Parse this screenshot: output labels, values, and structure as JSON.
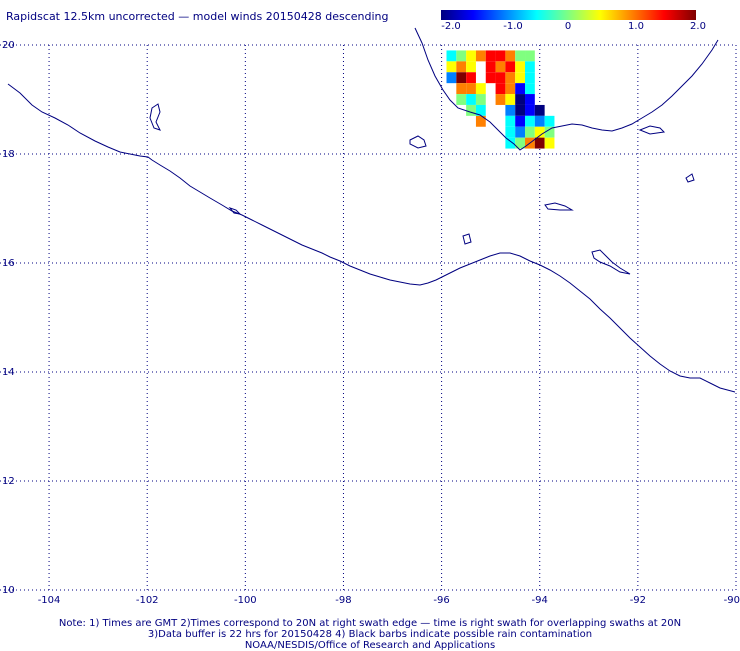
{
  "title": "Rapidscat 12.5km uncorrected — model winds 20150428 descending",
  "colorbar": {
    "labels": [
      "-2.0",
      "-1.0",
      "0",
      "1.0",
      "2.0"
    ],
    "colors": [
      "#00007f",
      "#0000ff",
      "#0080ff",
      "#00ffff",
      "#80ff80",
      "#ffff00",
      "#ff8000",
      "#ff0000",
      "#7f0000"
    ]
  },
  "map": {
    "lon_range": [
      -105,
      -90
    ],
    "lat_range": [
      10,
      20
    ],
    "lon_ticks": [
      -104,
      -102,
      -100,
      -98,
      -96,
      -94,
      -92,
      -90
    ],
    "lon_labels": [
      "-104",
      "-102",
      "-100",
      "-98",
      "-96",
      "-94",
      "-92",
      "-90"
    ],
    "lat_ticks": [
      20,
      18,
      16,
      14,
      12,
      10
    ],
    "lat_labels": [
      "20",
      "18",
      "16",
      "14",
      "12",
      "10"
    ],
    "coast_color": "#000080",
    "grid": "dotted"
  },
  "swath_cells": [
    [
      "-95.8",
      "19.8",
      "#00ffff"
    ],
    [
      "-95.6",
      "19.8",
      "#80ff80"
    ],
    [
      "-95.4",
      "19.8",
      "#ffff00"
    ],
    [
      "-95.2",
      "19.8",
      "#ff8000"
    ],
    [
      "-95.0",
      "19.8",
      "#ff0000"
    ],
    [
      "-94.8",
      "19.8",
      "#ff0000"
    ],
    [
      "-94.6",
      "19.8",
      "#ff8000"
    ],
    [
      "-94.4",
      "19.8",
      "#80ff80"
    ],
    [
      "-94.2",
      "19.8",
      "#80ff80"
    ],
    [
      "-95.8",
      "19.6",
      "#ffff00"
    ],
    [
      "-95.6",
      "19.6",
      "#ff8000"
    ],
    [
      "-95.4",
      "19.6",
      "#ffff00"
    ],
    [
      "-95.0",
      "19.6",
      "#ff0000"
    ],
    [
      "-94.8",
      "19.6",
      "#ff8000"
    ],
    [
      "-94.6",
      "19.6",
      "#ff0000"
    ],
    [
      "-94.4",
      "19.6",
      "#ffff00"
    ],
    [
      "-94.2",
      "19.6",
      "#00ffff"
    ],
    [
      "-95.8",
      "19.4",
      "#0080ff"
    ],
    [
      "-95.6",
      "19.4",
      "#7f0000"
    ],
    [
      "-95.4",
      "19.4",
      "#ff0000"
    ],
    [
      "-95.0",
      "19.4",
      "#ff0000"
    ],
    [
      "-94.8",
      "19.4",
      "#ff0000"
    ],
    [
      "-94.6",
      "19.4",
      "#ff8000"
    ],
    [
      "-94.4",
      "19.4",
      "#ffff00"
    ],
    [
      "-94.2",
      "19.4",
      "#00ffff"
    ],
    [
      "-95.6",
      "19.2",
      "#ff8000"
    ],
    [
      "-95.4",
      "19.2",
      "#ff8000"
    ],
    [
      "-95.2",
      "19.2",
      "#ffff00"
    ],
    [
      "-94.8",
      "19.2",
      "#ff0000"
    ],
    [
      "-94.6",
      "19.2",
      "#ff8000"
    ],
    [
      "-94.4",
      "19.2",
      "#0000ff"
    ],
    [
      "-94.2",
      "19.2",
      "#00ffff"
    ],
    [
      "-95.6",
      "19.0",
      "#80ff80"
    ],
    [
      "-95.4",
      "19.0",
      "#00ffff"
    ],
    [
      "-95.2",
      "19.0",
      "#80ff80"
    ],
    [
      "-94.8",
      "19.0",
      "#ff8000"
    ],
    [
      "-94.6",
      "19.0",
      "#ffff00"
    ],
    [
      "-94.4",
      "19.0",
      "#00007f"
    ],
    [
      "-94.2",
      "19.0",
      "#0000ff"
    ],
    [
      "-95.4",
      "18.8",
      "#80ff80"
    ],
    [
      "-95.2",
      "18.8",
      "#00ffff"
    ],
    [
      "-94.6",
      "18.8",
      "#0080ff"
    ],
    [
      "-94.4",
      "18.8",
      "#00007f"
    ],
    [
      "-94.2",
      "18.8",
      "#0000ff"
    ],
    [
      "-94.0",
      "18.8",
      "#00007f"
    ],
    [
      "-95.2",
      "18.6",
      "#ff8000"
    ],
    [
      "-94.6",
      "18.6",
      "#00ffff"
    ],
    [
      "-94.4",
      "18.6",
      "#0000ff"
    ],
    [
      "-94.2",
      "18.6",
      "#00ffff"
    ],
    [
      "-94.0",
      "18.6",
      "#0080ff"
    ],
    [
      "-93.8",
      "18.6",
      "#00ffff"
    ],
    [
      "-94.6",
      "18.4",
      "#00ffff"
    ],
    [
      "-94.4",
      "18.4",
      "#0080ff"
    ],
    [
      "-94.2",
      "18.4",
      "#80ff80"
    ],
    [
      "-94.0",
      "18.4",
      "#ffff00"
    ],
    [
      "-93.8",
      "18.4",
      "#80ff80"
    ],
    [
      "-94.6",
      "18.2",
      "#00ffff"
    ],
    [
      "-94.4",
      "18.2",
      "#80ff80"
    ],
    [
      "-94.2",
      "18.2",
      "#ff8000"
    ],
    [
      "-94.0",
      "18.2",
      "#7f0000"
    ],
    [
      "-93.8",
      "18.2",
      "#ffff00"
    ]
  ],
  "notes": {
    "line1": "Note: 1) Times are GMT 2)Times correspond to 20N at right swath edge — time is right swath for overlapping swaths at 20N",
    "line2": "3)Data buffer is 22 hrs for 20150428 4) Black barbs indicate possible rain contamination",
    "line3": "NOAA/NESDIS/Office of Research and Applications"
  }
}
